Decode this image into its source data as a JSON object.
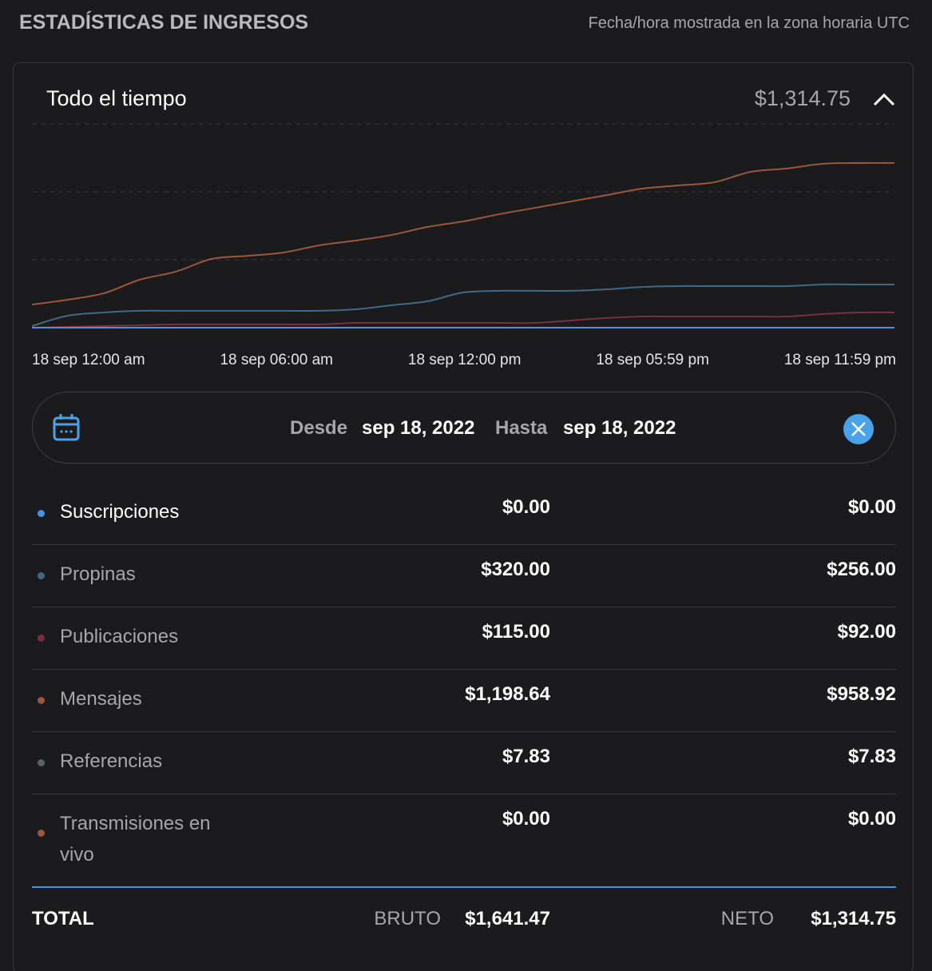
{
  "header": {
    "title": "ESTADÍSTICAS DE INGRESOS",
    "timezone_note": "Fecha/hora mostrada en la zona horaria UTC"
  },
  "card": {
    "title": "Todo el tiempo",
    "total": "$1,314.75"
  },
  "chart_data": {
    "type": "line",
    "categories": [
      "18 sep 12:00 am",
      null,
      null,
      null,
      null,
      null,
      "18 sep 06:00 am",
      null,
      null,
      null,
      null,
      null,
      "18 sep 12:00 pm",
      null,
      null,
      null,
      null,
      null,
      "18 sep 05:59 pm",
      null,
      null,
      null,
      null,
      null,
      "18 sep 11:59 pm"
    ],
    "series": [
      {
        "color": "#9c573f",
        "values": [
          170,
          206,
          253,
          353,
          412,
          506,
          529,
          553,
          606,
          641,
          682,
          741,
          782,
          835,
          882,
          929,
          976,
          1024,
          1047,
          1071,
          1147,
          1171,
          1206,
          1212,
          1212
        ]
      },
      {
        "color": "#3f6a87",
        "values": [
          12,
          88,
          112,
          124,
          124,
          124,
          124,
          124,
          124,
          135,
          165,
          194,
          259,
          271,
          271,
          271,
          282,
          300,
          306,
          306,
          306,
          306,
          318,
          318,
          318
        ]
      },
      {
        "color": "#7a3043",
        "values": [
          0,
          6,
          12,
          18,
          24,
          24,
          24,
          24,
          24,
          35,
          35,
          35,
          35,
          35,
          35,
          53,
          71,
          82,
          82,
          82,
          82,
          82,
          100,
          112,
          112
        ]
      },
      {
        "color": "#4a90e2",
        "values": [
          0,
          0,
          0,
          0,
          0,
          0,
          0,
          0,
          0,
          0,
          0,
          0,
          0,
          0,
          0,
          0,
          0,
          0,
          0,
          0,
          0,
          0,
          0,
          0,
          0
        ]
      }
    ],
    "ylim": [
      0,
      1500
    ],
    "yticks": [
      0,
      500,
      1000,
      1500
    ],
    "grid": true
  },
  "date_filter": {
    "from_label": "Desde",
    "from": "sep 18, 2022",
    "to_label": "Hasta",
    "to": "sep 18, 2022"
  },
  "table": {
    "rows": [
      {
        "name": "Suscripciones",
        "color": "#4a90e2",
        "gross": "$0.00",
        "net": "$0.00"
      },
      {
        "name": "Propinas",
        "color": "#3f6a87",
        "gross": "$320.00",
        "net": "$256.00"
      },
      {
        "name": "Publicaciones",
        "color": "#7a3043",
        "gross": "$115.00",
        "net": "$92.00"
      },
      {
        "name": "Mensajes",
        "color": "#9c573f",
        "gross": "$1,198.64",
        "net": "$958.92"
      },
      {
        "name": "Referencias",
        "color": "#5d6068",
        "gross": "$7.83",
        "net": "$7.83"
      },
      {
        "name": "Transmisiones en vivo",
        "color": "#9c573f",
        "gross": "$0.00",
        "net": "$0.00"
      }
    ],
    "total": {
      "label": "TOTAL",
      "gross_label": "BRUTO",
      "gross": "$1,641.47",
      "net_label": "NETO",
      "net": "$1,314.75"
    }
  }
}
